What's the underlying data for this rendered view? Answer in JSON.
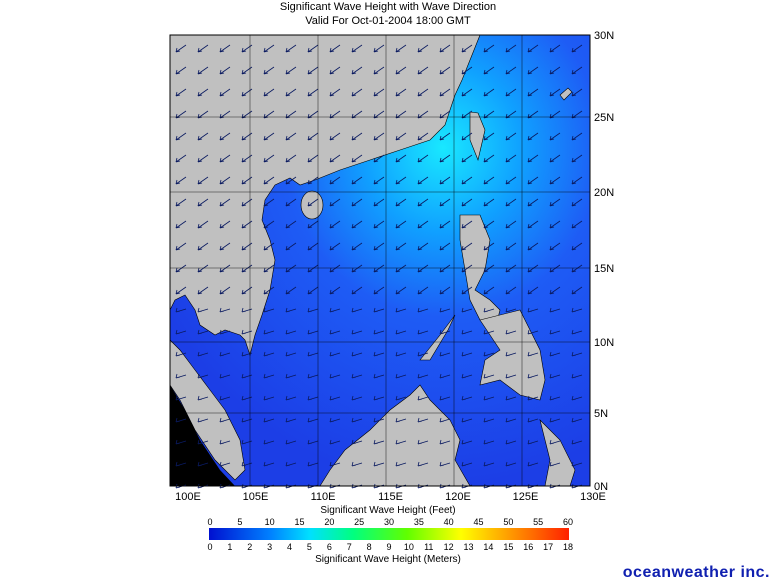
{
  "header": {
    "title": "Significant Wave Height with Wave Direction",
    "subtitle": "Valid For Oct-01-2004 18:00 GMT"
  },
  "map": {
    "lon_labels": [
      "100E",
      "105E",
      "110E",
      "115E",
      "120E",
      "125E",
      "130E"
    ],
    "lat_labels": [
      "30N",
      "25N",
      "20N",
      "15N",
      "10N",
      "5N",
      "0N"
    ]
  },
  "legend": {
    "feet_title": "Significant Wave Height (Feet)",
    "feet_labels": [
      0,
      5,
      10,
      15,
      20,
      25,
      30,
      35,
      40,
      45,
      50,
      55,
      60
    ],
    "meters_labels": [
      0,
      1,
      2,
      3,
      4,
      5,
      6,
      7,
      8,
      9,
      10,
      11,
      12,
      13,
      14,
      15,
      16,
      17,
      18
    ],
    "meters_title": "Significant Wave Height (Meters)"
  },
  "brand": "oceanweather inc."
}
